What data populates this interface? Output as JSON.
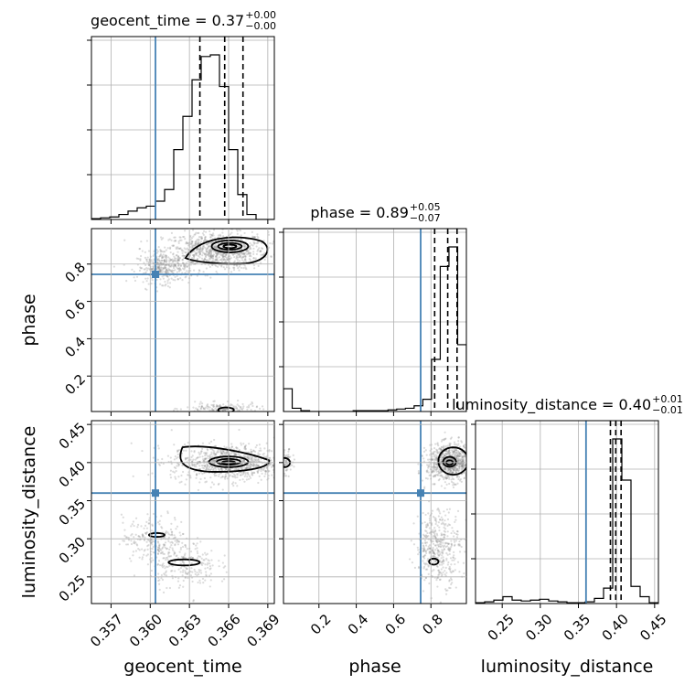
{
  "colors": {
    "truth": "#4682b4",
    "hist": "#000000",
    "samples": "#808080",
    "grid": "#b0b0b0"
  },
  "chart_data": {
    "type": "corner",
    "parameters": [
      "geocent_time",
      "phase",
      "luminosity_distance"
    ],
    "truths": {
      "geocent_time": 0.3604,
      "phase": 0.745,
      "luminosity_distance": 0.36
    },
    "ranges": {
      "geocent_time": [
        0.3555,
        0.3695
      ],
      "phase": [
        0.01,
        0.99
      ],
      "luminosity_distance": [
        0.215,
        0.455
      ]
    },
    "ticks": {
      "geocent_time": [
        0.357,
        0.36,
        0.363,
        0.366,
        0.369
      ],
      "phase": [
        0.2,
        0.4,
        0.6,
        0.8
      ],
      "luminosity_distance": [
        0.25,
        0.3,
        0.35,
        0.4,
        0.45
      ]
    },
    "tick_labels": {
      "geocent_time": [
        "0.357",
        "0.360",
        "0.363",
        "0.366",
        "0.369"
      ],
      "phase": [
        "0.2",
        "0.4",
        "0.6",
        "0.8"
      ],
      "luminosity_distance": [
        "0.25",
        "0.30",
        "0.35",
        "0.40",
        "0.45"
      ]
    },
    "titles": [
      {
        "param": "geocent_time",
        "main": "geocent_time = 0.37",
        "upper": "+0.00",
        "lower": "−0.00"
      },
      {
        "param": "phase",
        "main": "phase = 0.89",
        "upper": "+0.05",
        "lower": "−0.07"
      },
      {
        "param": "luminosity_distance",
        "main": "luminosity_distance = 0.40",
        "upper": "+0.01",
        "lower": "−0.01"
      }
    ],
    "quantiles": {
      "geocent_time": [
        0.3638,
        0.3657,
        0.3671
      ],
      "phase": [
        0.82,
        0.89,
        0.94
      ],
      "luminosity_distance": [
        0.392,
        0.399,
        0.406
      ]
    },
    "histograms": {
      "geocent_time": {
        "range": [
          0.3555,
          0.3695
        ],
        "counts": [
          0.5,
          1,
          1.5,
          3,
          5,
          7,
          8,
          11,
          18,
          42,
          62,
          84,
          98,
          99,
          80,
          42,
          15,
          3,
          0,
          0
        ]
      },
      "phase": {
        "range": [
          0.01,
          0.99
        ],
        "counts": [
          14,
          2,
          0.5,
          0,
          0,
          0,
          0,
          0,
          0.5,
          0.5,
          0.5,
          0.5,
          1,
          1.5,
          2,
          3.5,
          7.5,
          32,
          89,
          101,
          41
        ]
      },
      "luminosity_distance": {
        "range": [
          0.215,
          0.455
        ],
        "counts": [
          0.5,
          1,
          2,
          4,
          2,
          1.5,
          2,
          2.5,
          1.5,
          1,
          0.5,
          0.5,
          1,
          3,
          9,
          96,
          72,
          10,
          4,
          0.5
        ]
      }
    },
    "xlabels": [
      "geocent_time",
      "phase",
      "luminosity_distance"
    ],
    "ylabels": {
      "row1": "phase",
      "row2": "luminosity_distance"
    }
  }
}
